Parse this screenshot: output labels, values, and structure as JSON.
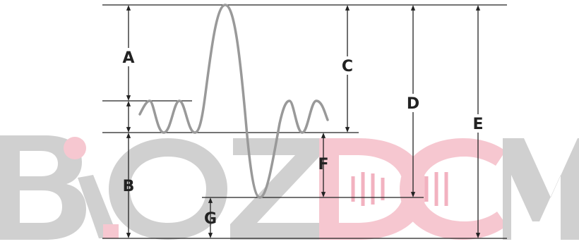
{
  "watermark": {
    "text": "BIOZDCM",
    "letters": [
      "B",
      "I",
      "O",
      "Z",
      "D",
      "C",
      "M"
    ],
    "gray": "#d0d0d0",
    "pink": "#f6c7d0",
    "pink_strong": "#f2b2c0"
  },
  "colors": {
    "line": "#222222",
    "waveform": "#999999",
    "label": "#222222"
  },
  "labels": {
    "a": "A",
    "b": "B",
    "c": "C",
    "d": "D",
    "e": "E",
    "f": "F",
    "g": "G"
  }
}
